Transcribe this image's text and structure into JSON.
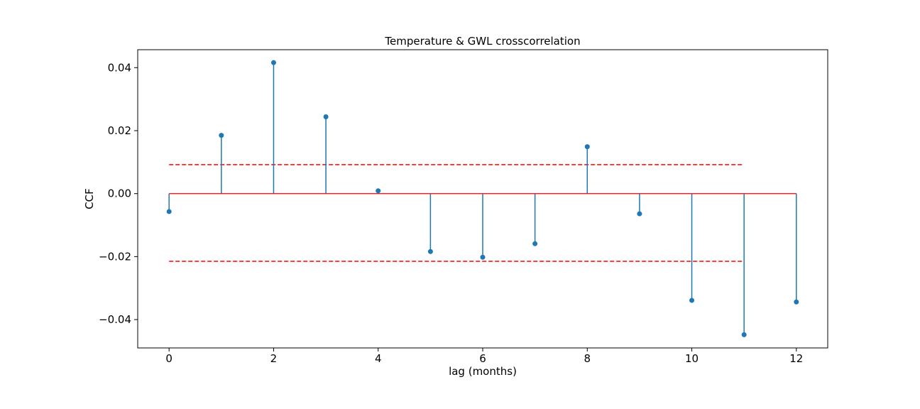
{
  "chart_data": {
    "type": "stem",
    "title": "Temperature & GWL crosscorrelation",
    "xlabel": "lag (months)",
    "ylabel": "CCF",
    "x": [
      0,
      1,
      2,
      3,
      4,
      5,
      6,
      7,
      8,
      9,
      10,
      11,
      12
    ],
    "values": [
      -0.0057,
      0.0185,
      0.0416,
      0.0244,
      0.0009,
      -0.0184,
      -0.0202,
      -0.0159,
      0.0149,
      -0.0064,
      -0.0339,
      -0.0448,
      -0.0344
    ],
    "confidence_bounds": {
      "upper": 0.0092,
      "lower": -0.0215,
      "x_range": [
        0,
        11
      ]
    },
    "baseline": 0,
    "xlim": [
      -0.6,
      12.6
    ],
    "ylim": [
      -0.049,
      0.0457
    ],
    "xticks": [
      0,
      2,
      4,
      6,
      8,
      10,
      12
    ],
    "xtick_labels": [
      "0",
      "2",
      "4",
      "6",
      "8",
      "10",
      "12"
    ],
    "yticks": [
      -0.04,
      -0.02,
      0.0,
      0.02,
      0.04
    ],
    "ytick_labels": [
      "−0.04",
      "−0.02",
      "0.00",
      "0.02",
      "0.04"
    ],
    "colors": {
      "stem": "#1f77b4",
      "baseline": "#d62728",
      "bounds": "#ff0000"
    },
    "grid": false
  }
}
